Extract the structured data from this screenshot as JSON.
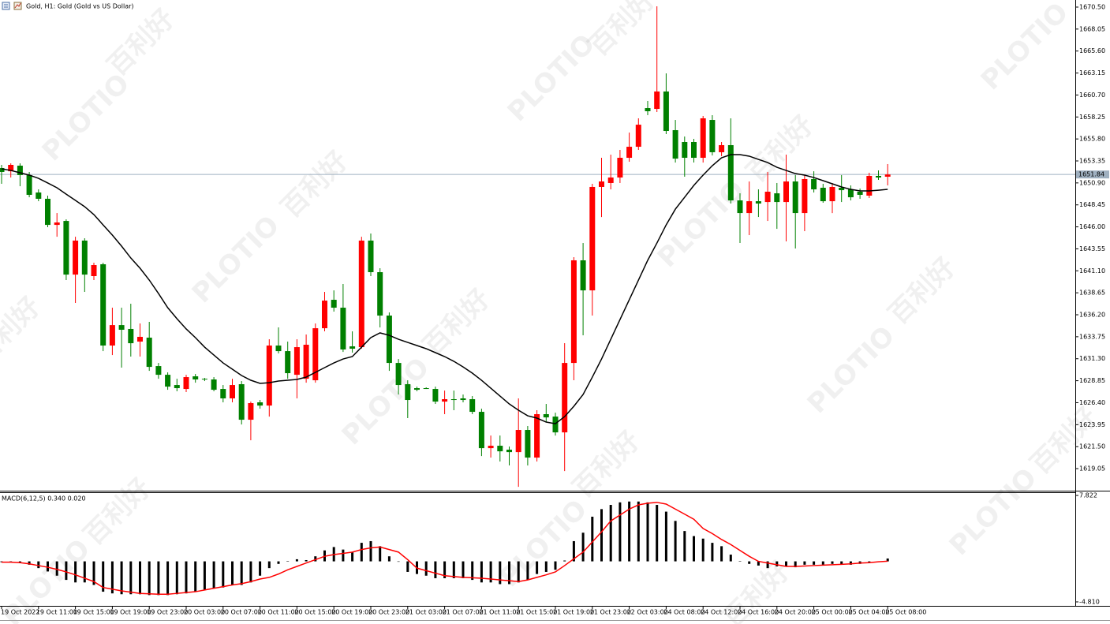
{
  "watermark": {
    "brand": "PLOTIO",
    "name": "百利好"
  },
  "chart_data": [
    {
      "type": "candlestick",
      "title": "Gold, H1:  Gold (Gold vs US Dollar)",
      "categories": [
        "19 Oct 2022",
        null,
        null,
        null,
        "19 Oct 11:00",
        null,
        null,
        null,
        "19 Oct 15:00",
        null,
        null,
        null,
        "19 Oct 19:00",
        null,
        null,
        null,
        "19 Oct 23:00",
        null,
        null,
        null,
        "20 Oct 03:00",
        null,
        null,
        null,
        "20 Oct 07:00",
        null,
        null,
        null,
        "20 Oct 11:00",
        null,
        null,
        null,
        "20 Oct 15:00",
        null,
        null,
        null,
        "20 Oct 19:00",
        null,
        null,
        null,
        "20 Oct 23:00",
        null,
        null,
        null,
        "21 Oct 03:00",
        null,
        null,
        null,
        "21 Oct 07:00",
        null,
        null,
        null,
        "21 Oct 11:00",
        null,
        null,
        null,
        "21 Oct 15:00",
        null,
        null,
        null,
        "21 Oct 19:00",
        null,
        null,
        null,
        "21 Oct 23:00",
        null,
        null,
        null,
        "22 Oct 03:00",
        null,
        null,
        null,
        "24 Oct 08:00",
        null,
        null,
        null,
        "24 Oct 12:00",
        null,
        null,
        null,
        "24 Oct 16:00",
        null,
        null,
        null,
        "24 Oct 20:00",
        null,
        null,
        null,
        "25 Oct 00:00",
        null,
        null,
        null,
        "25 Oct 04:00",
        null,
        null,
        null,
        "25 Oct 08:00"
      ],
      "open": [
        1652.56,
        1652.2,
        1652.82,
        1651.77,
        1649.83,
        1649.13,
        1646.22,
        1646.66,
        1640.68,
        1644.47,
        1640.51,
        1641.83,
        1632.77,
        1635.05,
        1634.62,
        1633.21,
        1633.65,
        1630.48,
        1629.51,
        1628.37,
        1627.93,
        1629.34,
        1629.07,
        1628.99,
        1627.93,
        1626.88,
        1628.46,
        1624.5,
        1626.44,
        1626.08,
        1632.77,
        1632.15,
        1629.51,
        1629.07,
        1628.9,
        1634.7,
        1637.87,
        1636.99,
        1632.68,
        1632.59,
        1644.47,
        1640.95,
        1636.11,
        1630.83,
        1628.46,
        1628.02,
        1628.02,
        1627.93,
        1626.52,
        1626.79,
        1626.88,
        1626.79,
        1625.38,
        1621.33,
        1621.6,
        1621.16,
        1620.89,
        1623.36,
        1620.28,
        1625.12,
        1624.85,
        1623.09,
        1630.83,
        1642.27,
        1638.92,
        1650.45,
        1650.89,
        1651.5,
        1653.7,
        1654.93,
        1659.24,
        1659.15,
        1661.09,
        1656.78,
        1655.46,
        1655.46,
        1653.7,
        1657.92,
        1654.32,
        1655.11,
        1648.95,
        1647.54,
        1648.86,
        1648.77,
        1649.74,
        1648.77,
        1651.06,
        1647.54,
        1651.33,
        1650.36,
        1648.86,
        1650.36,
        1650.18,
        1649.92,
        1649.48,
        1651.68,
        1651.59
      ],
      "high": [
        1652.91,
        1653.08,
        1653.08,
        1652.12,
        1650.18,
        1649.48,
        1647.54,
        1646.84,
        1644.9,
        1644.73,
        1642.0,
        1642.0,
        1636.99,
        1636.99,
        1637.43,
        1635.23,
        1635.41,
        1630.83,
        1629.78,
        1629.07,
        1629.51,
        1629.6,
        1629.16,
        1629.25,
        1628.37,
        1629.07,
        1628.81,
        1626.52,
        1626.7,
        1633.47,
        1634.79,
        1633.21,
        1633.47,
        1634.0,
        1635.23,
        1638.75,
        1638.92,
        1639.63,
        1634.35,
        1644.9,
        1645.26,
        1641.39,
        1636.46,
        1631.27,
        1628.9,
        1628.19,
        1628.11,
        1628.19,
        1627.75,
        1627.75,
        1627.31,
        1627.14,
        1625.73,
        1622.74,
        1622.74,
        1621.51,
        1626.88,
        1623.8,
        1625.56,
        1626.26,
        1625.29,
        1633.03,
        1642.62,
        1644.2,
        1650.8,
        1653.7,
        1654.05,
        1654.58,
        1656.51,
        1658.1,
        1660.03,
        1670.59,
        1663.11,
        1657.92,
        1656.07,
        1655.81,
        1658.36,
        1658.45,
        1655.46,
        1658.1,
        1649.74,
        1651.06,
        1650.18,
        1652.12,
        1650.89,
        1654.05,
        1651.77,
        1651.77,
        1652.2,
        1650.8,
        1650.89,
        1651.77,
        1650.62,
        1650.27,
        1652.03,
        1652.29,
        1653.0
      ],
      "low": [
        1650.8,
        1651.5,
        1650.53,
        1649.3,
        1648.86,
        1645.96,
        1644.9,
        1640.07,
        1637.52,
        1638.75,
        1640.07,
        1632.15,
        1631.71,
        1630.31,
        1631.54,
        1631.54,
        1629.95,
        1629.07,
        1627.84,
        1627.67,
        1627.58,
        1628.63,
        1628.81,
        1627.67,
        1626.44,
        1626.44,
        1623.97,
        1622.21,
        1625.73,
        1624.85,
        1631.89,
        1629.07,
        1626.88,
        1628.63,
        1628.63,
        1634.35,
        1636.55,
        1632.06,
        1631.98,
        1632.42,
        1640.51,
        1634.79,
        1629.95,
        1627.31,
        1624.68,
        1627.67,
        1627.93,
        1626.26,
        1625.12,
        1625.56,
        1626.44,
        1625.12,
        1620.45,
        1620.28,
        1619.84,
        1619.4,
        1617.02,
        1619.4,
        1619.84,
        1624.24,
        1622.74,
        1618.78,
        1628.9,
        1633.91,
        1636.11,
        1647.1,
        1650.18,
        1650.89,
        1653.26,
        1654.58,
        1658.45,
        1658.8,
        1656.34,
        1653.17,
        1651.59,
        1653.17,
        1653.17,
        1653.96,
        1653.88,
        1648.6,
        1644.2,
        1645.08,
        1647.1,
        1646.66,
        1645.78,
        1644.38,
        1643.59,
        1645.52,
        1649.83,
        1648.69,
        1647.54,
        1648.77,
        1648.95,
        1649.13,
        1649.22,
        1651.24,
        1650.62
      ],
      "close": [
        1652.12,
        1652.91,
        1651.77,
        1649.57,
        1649.13,
        1646.22,
        1646.49,
        1640.68,
        1644.47,
        1640.68,
        1641.74,
        1632.77,
        1635.05,
        1634.53,
        1633.03,
        1633.74,
        1630.39,
        1629.51,
        1628.19,
        1628.02,
        1629.25,
        1628.99,
        1628.99,
        1627.84,
        1626.88,
        1628.37,
        1624.5,
        1626.35,
        1626.08,
        1632.77,
        1632.15,
        1629.69,
        1632.59,
        1632.86,
        1634.7,
        1637.78,
        1636.99,
        1632.33,
        1632.42,
        1644.47,
        1640.95,
        1636.11,
        1630.83,
        1628.37,
        1626.7,
        1627.84,
        1627.93,
        1626.52,
        1626.79,
        1626.7,
        1626.7,
        1625.38,
        1621.33,
        1621.6,
        1620.98,
        1620.89,
        1623.36,
        1620.28,
        1625.12,
        1624.76,
        1623.09,
        1630.83,
        1642.27,
        1638.92,
        1650.45,
        1651.06,
        1651.5,
        1653.7,
        1654.93,
        1657.39,
        1658.89,
        1661.09,
        1656.69,
        1653.61,
        1653.7,
        1653.7,
        1658.1,
        1654.32,
        1655.11,
        1648.95,
        1647.54,
        1648.86,
        1648.6,
        1649.92,
        1648.77,
        1651.06,
        1647.54,
        1651.33,
        1650.18,
        1648.86,
        1650.45,
        1650.09,
        1649.3,
        1649.57,
        1651.68,
        1651.5,
        1651.84
      ],
      "up_color": "#ff0000",
      "down_color": "#008000",
      "ma": {
        "color": "#000000",
        "values": [
          1652.47,
          1652.29,
          1652.03,
          1651.77,
          1651.41,
          1650.89,
          1650.36,
          1649.65,
          1648.95,
          1648.25,
          1647.37,
          1646.22,
          1645.08,
          1643.85,
          1642.53,
          1641.39,
          1640.07,
          1638.57,
          1636.99,
          1635.76,
          1634.62,
          1633.65,
          1632.59,
          1631.71,
          1630.83,
          1630.13,
          1629.43,
          1628.9,
          1628.55,
          1628.63,
          1628.81,
          1628.9,
          1628.99,
          1629.25,
          1629.78,
          1630.31,
          1630.83,
          1631.27,
          1631.54,
          1632.59,
          1633.65,
          1634.18,
          1633.91,
          1633.47,
          1633.12,
          1632.77,
          1632.42,
          1631.98,
          1631.54,
          1631.01,
          1630.39,
          1629.69,
          1628.9,
          1628.02,
          1627.14,
          1626.26,
          1625.56,
          1624.94,
          1624.68,
          1624.24,
          1624.06,
          1624.85,
          1626.0,
          1627.31,
          1629.25,
          1631.27,
          1633.47,
          1635.67,
          1637.87,
          1640.07,
          1642.27,
          1644.2,
          1646.22,
          1647.98,
          1649.3,
          1650.62,
          1651.77,
          1652.82,
          1653.7,
          1654.05,
          1654.05,
          1653.88,
          1653.52,
          1653.17,
          1652.64,
          1652.29,
          1651.94,
          1651.77,
          1651.5,
          1651.15,
          1650.8,
          1650.45,
          1650.18,
          1650.01,
          1650.01,
          1650.09,
          1650.18
        ]
      },
      "last_price": 1651.84,
      "last_price_color": "#9fb0c0",
      "ylim": [
        1616.59,
        1671.29
      ],
      "yticks": [
        {
          "value": 1670.5,
          "label": "1670.50"
        },
        1668.05,
        {
          "value": 1665.6,
          "label": "1665.60"
        },
        1663.15,
        {
          "value": 1660.7,
          "label": "1660.70"
        },
        1658.25,
        {
          "value": 1655.8,
          "label": "1655.80"
        },
        1653.35,
        {
          "value": 1650.9,
          "label": "1650.90"
        },
        1648.45,
        {
          "value": 1646,
          "label": "1646.00"
        },
        1643.55,
        {
          "value": 1641.1,
          "label": "1641.10"
        },
        1638.65,
        {
          "value": 1636.2,
          "label": "1636.20"
        },
        1633.75,
        {
          "value": 1631.3,
          "label": "1631.30"
        },
        1628.85,
        {
          "value": 1626.4,
          "label": "1626.40"
        },
        1623.95,
        {
          "value": 1621.5,
          "label": "1621.50"
        },
        1619.05
      ]
    },
    {
      "type": "macd",
      "label": "MACD(6,12,5) 0.340 0.020",
      "color": "#000000",
      "values": [
        -0.1,
        -0.1,
        -0.2,
        -0.4,
        -0.8,
        -1.2,
        -1.7,
        -2.2,
        -2.5,
        -2.5,
        -2.8,
        -3.6,
        -3.8,
        -3.9,
        -3.9,
        -3.9,
        -4.0,
        -4.0,
        -4.0,
        -3.9,
        -3.8,
        -3.6,
        -3.4,
        -3.2,
        -3.1,
        -2.8,
        -2.8,
        -2.5,
        -1.7,
        -0.8,
        -0.3,
        0.05,
        0.25,
        0.15,
        0.6,
        1.3,
        1.7,
        1.4,
        1.1,
        2.2,
        2.4,
        1.8,
        0.6,
        -0.05,
        -1.25,
        -1.5,
        -1.7,
        -2.0,
        -2.0,
        -2.0,
        -2.0,
        -2.2,
        -2.5,
        -2.5,
        -2.7,
        -2.7,
        -2.5,
        -2.2,
        -1.5,
        -1.25,
        -1.0,
        0.1,
        2.4,
        3.4,
        5.3,
        6.2,
        6.7,
        7.0,
        7.1,
        7.1,
        7.0,
        6.7,
        5.9,
        4.8,
        3.6,
        3.0,
        2.7,
        2.2,
        1.8,
        0.8,
        0.05,
        -0.3,
        -0.5,
        -0.8,
        -0.6,
        -0.6,
        -0.7,
        -0.4,
        -0.4,
        -0.4,
        -0.3,
        -0.4,
        -0.4,
        -0.3,
        -0.1,
        0.0,
        0.34
      ],
      "signal": {
        "color": "#ff0000",
        "values": [
          -0.1,
          -0.1,
          -0.15,
          -0.3,
          -0.5,
          -0.7,
          -0.95,
          -1.25,
          -1.6,
          -2.0,
          -2.4,
          -3.1,
          -3.3,
          -3.5,
          -3.65,
          -3.8,
          -3.85,
          -3.9,
          -3.9,
          -3.8,
          -3.7,
          -3.6,
          -3.4,
          -3.2,
          -3.0,
          -2.8,
          -2.65,
          -2.4,
          -2.1,
          -1.9,
          -1.5,
          -1.0,
          -0.6,
          -0.2,
          0.2,
          0.6,
          0.8,
          0.95,
          1.1,
          1.4,
          1.6,
          1.7,
          1.4,
          1.1,
          0.2,
          -0.8,
          -1.1,
          -1.4,
          -1.7,
          -1.8,
          -1.9,
          -1.95,
          -2.0,
          -2.1,
          -2.2,
          -2.3,
          -2.4,
          -2.2,
          -1.9,
          -1.6,
          -1.25,
          -0.5,
          0.3,
          1.1,
          2.3,
          3.5,
          4.8,
          5.5,
          6.2,
          6.7,
          6.9,
          7.0,
          6.8,
          6.2,
          5.6,
          5.0,
          3.9,
          3.3,
          2.6,
          2.0,
          1.3,
          0.6,
          0.0,
          -0.2,
          -0.4,
          -0.6,
          -0.6,
          -0.55,
          -0.5,
          -0.45,
          -0.4,
          -0.35,
          -0.3,
          -0.2,
          -0.15,
          -0.05,
          0.02
        ]
      },
      "ylim": [
        -5.28,
        8.2
      ],
      "yticks": [
        7.822,
        {
          "value": -4.81,
          "label": "-4.810"
        }
      ]
    }
  ]
}
